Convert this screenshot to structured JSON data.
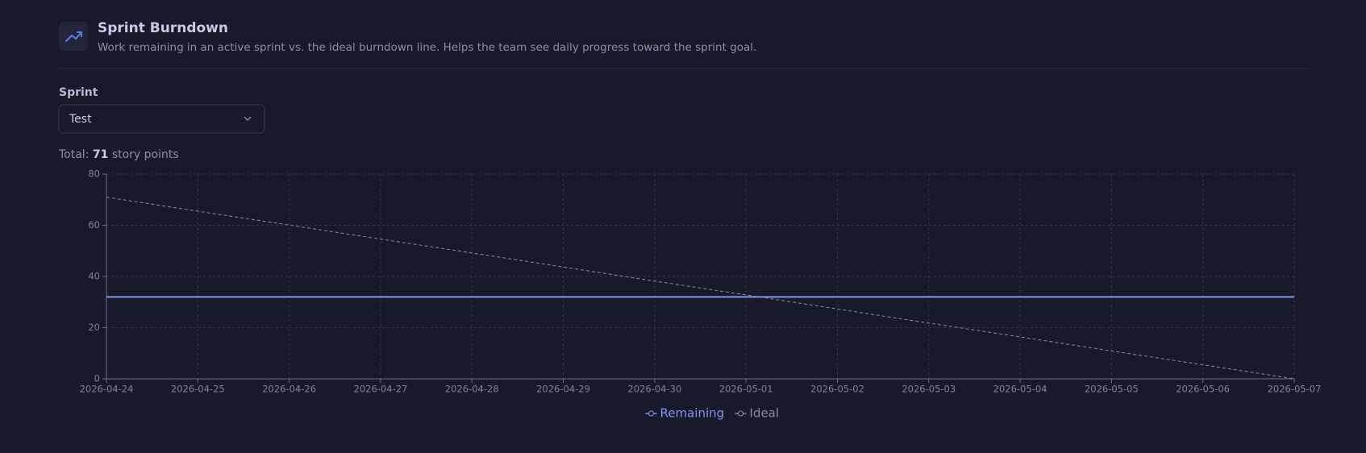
{
  "header": {
    "title": "Sprint Burndown",
    "subtitle": "Work remaining in an active sprint vs. the ideal burndown line. Helps the team see daily progress toward the sprint goal."
  },
  "sprint_select": {
    "label": "Sprint",
    "value": "Test"
  },
  "total": {
    "prefix": "Total:",
    "value": 71,
    "suffix": "story points"
  },
  "chart_data": {
    "type": "line",
    "categories": [
      "2026-04-24",
      "2026-04-25",
      "2026-04-26",
      "2026-04-27",
      "2026-04-28",
      "2026-04-29",
      "2026-04-30",
      "2026-05-01",
      "2026-05-02",
      "2026-05-03",
      "2026-05-04",
      "2026-05-05",
      "2026-05-06",
      "2026-05-07"
    ],
    "series": [
      {
        "name": "Remaining",
        "color": "#7d96ee",
        "values": [
          32,
          32,
          32,
          32,
          32,
          32,
          32,
          32,
          32,
          32,
          32,
          32,
          32,
          32
        ]
      },
      {
        "name": "Ideal",
        "color": "#8b8c9c",
        "dashed": true,
        "values": [
          71,
          65.5,
          60.1,
          54.6,
          49.2,
          43.7,
          38.2,
          32.8,
          27.3,
          21.8,
          16.4,
          10.9,
          5.5,
          0
        ]
      }
    ],
    "ylim": [
      0,
      80
    ],
    "yticks": [
      0,
      20,
      40,
      60,
      80
    ],
    "grid": true,
    "legend": "bottom"
  }
}
